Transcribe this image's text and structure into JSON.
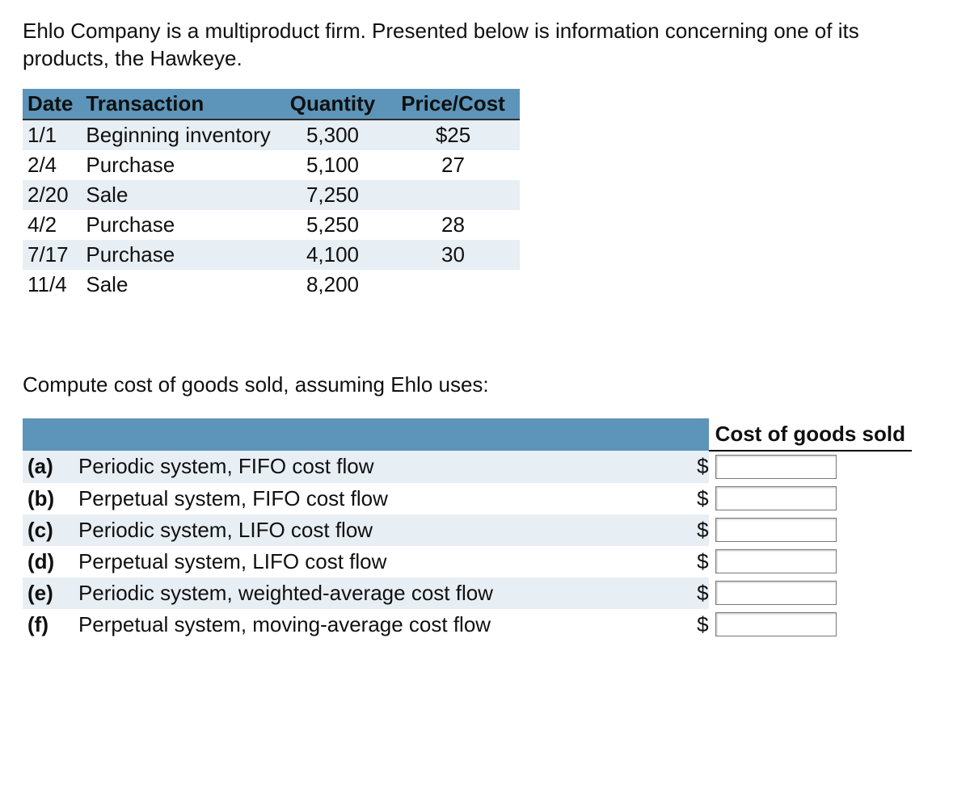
{
  "intro_text": "Ehlo Company is a multiproduct firm. Presented below is information concerning one of its products, the Hawkeye.",
  "trans_table": {
    "headers": [
      "Date",
      "Transaction",
      "Quantity",
      "Price/Cost"
    ],
    "header_bg": "#5c95b9",
    "row_colors": [
      "#e7eef4",
      "#ffffff"
    ],
    "rows": [
      {
        "date": "1/1",
        "txn": "Beginning inventory",
        "qty": "5,300",
        "price": "$25"
      },
      {
        "date": "2/4",
        "txn": "Purchase",
        "qty": "5,100",
        "price": "27"
      },
      {
        "date": "2/20",
        "txn": "Sale",
        "qty": "7,250",
        "price": ""
      },
      {
        "date": "4/2",
        "txn": "Purchase",
        "qty": "5,250",
        "price": "28"
      },
      {
        "date": "7/17",
        "txn": "Purchase",
        "qty": "4,100",
        "price": "30"
      },
      {
        "date": "11/4",
        "txn": "Sale",
        "qty": "8,200",
        "price": ""
      }
    ]
  },
  "question_text": "Compute cost of goods sold, assuming Ehlo uses:",
  "answers_table": {
    "header_bg": "#5c95b9",
    "value_header": "Cost of goods sold",
    "row_colors": [
      "#e7eef4",
      "#ffffff"
    ],
    "currency": "$",
    "rows": [
      {
        "letter": "(a)",
        "desc": "Periodic system, FIFO cost flow",
        "has_input": true
      },
      {
        "letter": "(b)",
        "desc": "Perpetual system, FIFO cost flow",
        "has_input": true
      },
      {
        "letter": "(c)",
        "desc": "Periodic system, LIFO cost flow",
        "has_input": true
      },
      {
        "letter": "(d)",
        "desc": "Perpetual system, LIFO cost flow",
        "has_input": true
      },
      {
        "letter": "(e)",
        "desc": "Periodic system, weighted-average cost flow",
        "has_input": true
      },
      {
        "letter": "(f)",
        "desc": "Perpetual system, moving-average cost flow",
        "has_input": true
      }
    ]
  }
}
